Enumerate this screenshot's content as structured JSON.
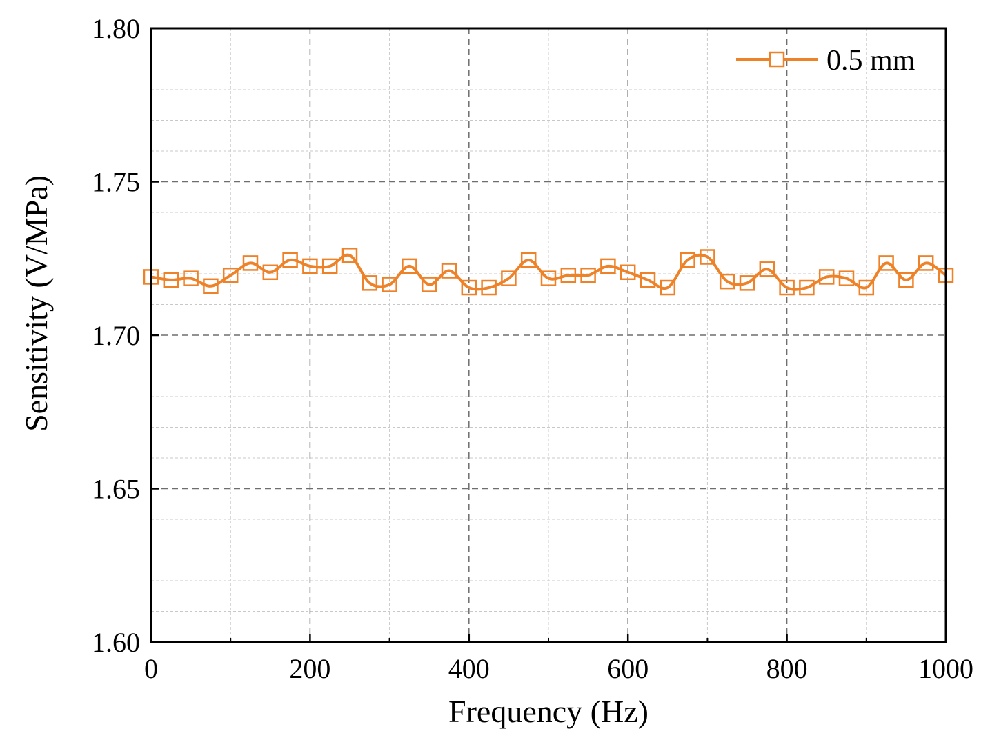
{
  "colors": {
    "series": "#ee8229",
    "major_grid": "#6e6e6e",
    "minor_grid": "#c8c8c8",
    "axis": "#000000"
  },
  "chart_data": {
    "type": "line",
    "title": "",
    "xlabel": "Frequency (Hz)",
    "ylabel": "Sensitivity (V/MPa)",
    "xlim": [
      0,
      1000
    ],
    "ylim": [
      1.6,
      1.8
    ],
    "x_ticks": [
      0,
      200,
      400,
      600,
      800,
      1000
    ],
    "x_tick_labels": [
      "0",
      "200",
      "400",
      "600",
      "800",
      "1000"
    ],
    "y_ticks": [
      1.6,
      1.65,
      1.7,
      1.75,
      1.8
    ],
    "y_tick_labels": [
      "1.60",
      "1.65",
      "1.70",
      "1.75",
      "1.80"
    ],
    "grid": true,
    "legend_position": "top-right",
    "series": [
      {
        "name": "0.5 mm",
        "marker": "open-square",
        "x": [
          0,
          25,
          50,
          75,
          100,
          125,
          150,
          175,
          200,
          225,
          250,
          275,
          300,
          325,
          350,
          375,
          400,
          425,
          450,
          475,
          500,
          525,
          550,
          575,
          600,
          625,
          650,
          675,
          700,
          725,
          750,
          775,
          800,
          825,
          850,
          875,
          900,
          925,
          950,
          975,
          1000
        ],
        "values": [
          1.719,
          1.718,
          1.7185,
          1.716,
          1.7195,
          1.7235,
          1.7205,
          1.7245,
          1.7225,
          1.7225,
          1.726,
          1.717,
          1.7165,
          1.7225,
          1.7165,
          1.721,
          1.7155,
          1.7155,
          1.7185,
          1.7245,
          1.7185,
          1.7195,
          1.7195,
          1.7225,
          1.7205,
          1.718,
          1.7155,
          1.7245,
          1.7255,
          1.7175,
          1.717,
          1.7215,
          1.7155,
          1.7155,
          1.719,
          1.7185,
          1.7155,
          1.7235,
          1.718,
          1.7235,
          1.7195
        ]
      }
    ]
  }
}
